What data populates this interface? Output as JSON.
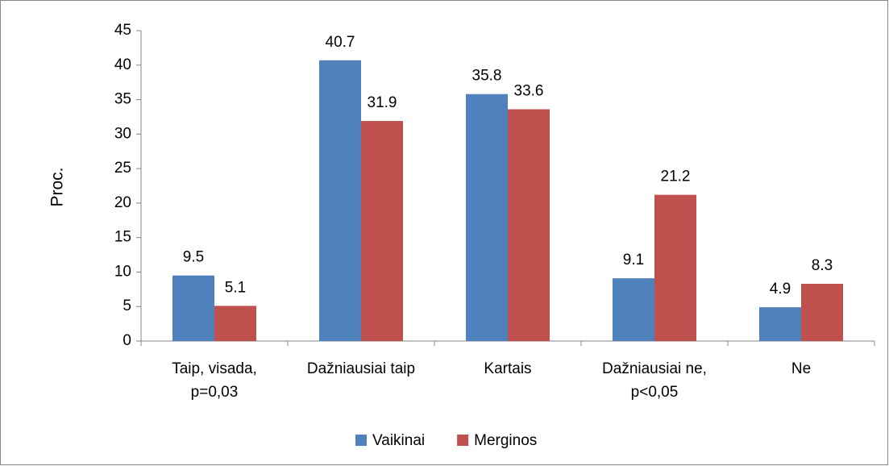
{
  "chart_data": {
    "type": "bar",
    "y_label": "Proc.",
    "categories": [
      "Taip, visada,\np=0,03",
      "Dažniausiai taip",
      "Kartais",
      "Dažniausiai ne,\np<0,05",
      "Ne"
    ],
    "series": [
      {
        "name": "Vaikinai",
        "color": "#4f81bd",
        "values": [
          9.5,
          40.7,
          35.8,
          9.1,
          4.9
        ]
      },
      {
        "name": "Merginos",
        "color": "#c0504d",
        "values": [
          5.1,
          31.9,
          33.6,
          21.2,
          8.3
        ]
      }
    ],
    "ylim": [
      0,
      45
    ],
    "yticks": [
      0,
      5,
      10,
      15,
      20,
      25,
      30,
      35,
      40,
      45
    ],
    "grid": false,
    "legend": "bottom"
  }
}
